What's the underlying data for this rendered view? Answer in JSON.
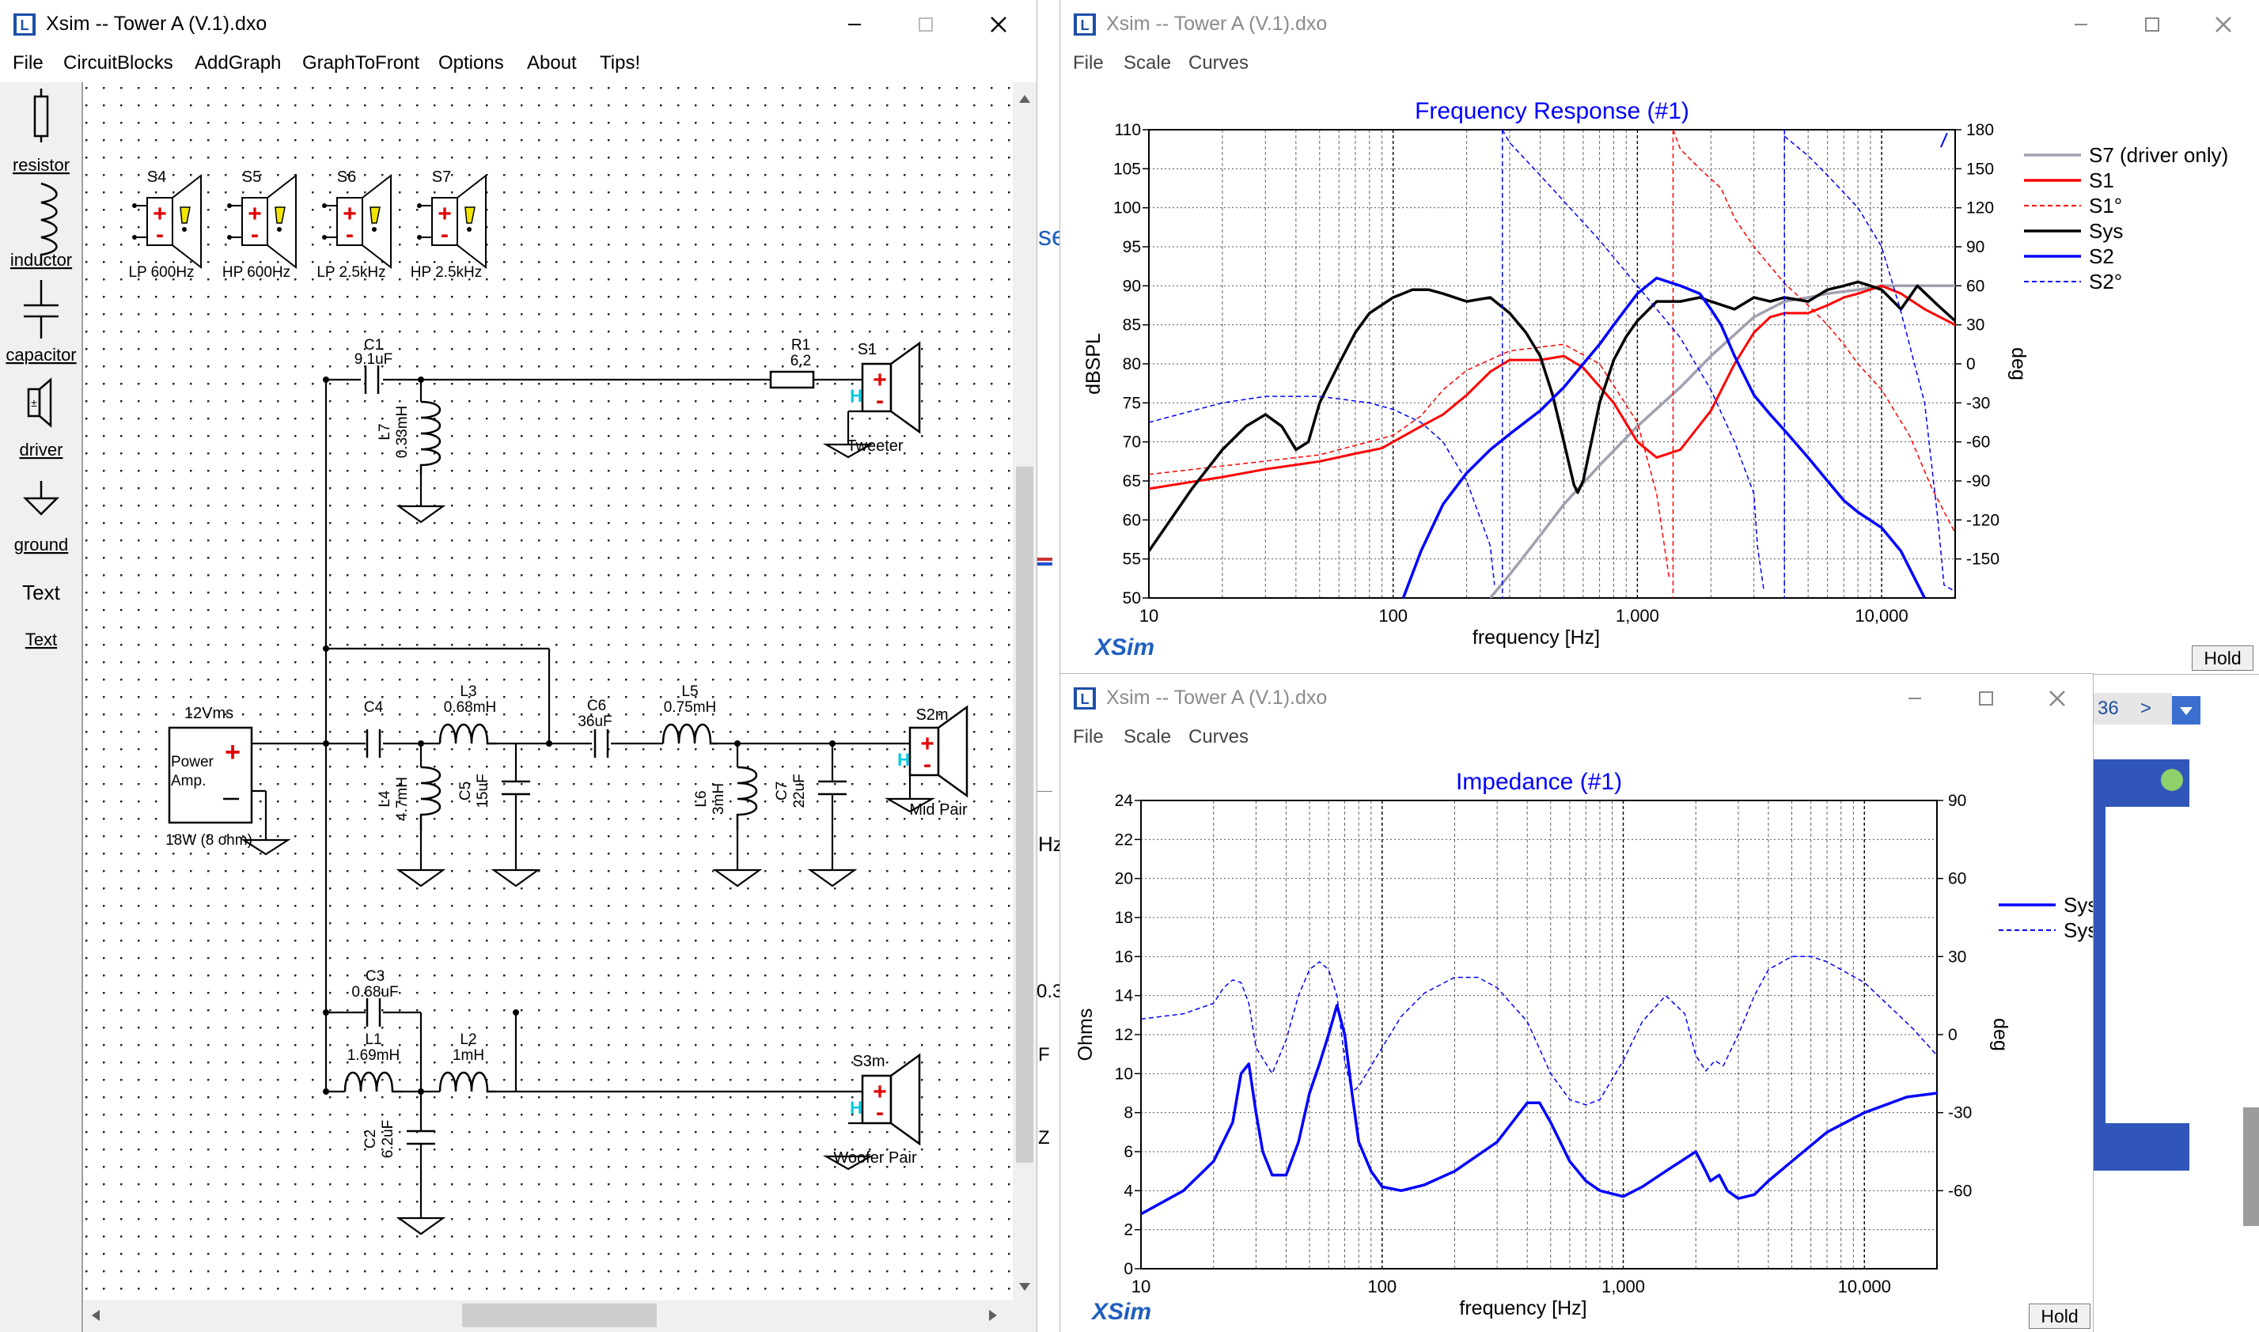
{
  "windows": {
    "schematic": {
      "title": "Xsim -- Tower A (V.1).dxo",
      "menu": [
        "File",
        "CircuitBlocks",
        "AddGraph",
        "GraphToFront",
        "Options",
        "About",
        "Tips!"
      ]
    },
    "freq": {
      "title": "Xsim -- Tower A (V.1).dxo",
      "menu": [
        "File",
        "Scale",
        "Curves"
      ],
      "hold": "Hold"
    },
    "imp": {
      "title": "Xsim -- Tower A (V.1).dxo",
      "menu": [
        "File",
        "Scale",
        "Curves"
      ],
      "hold": "Hold"
    }
  },
  "palette": [
    {
      "id": "resistor",
      "label": "resistor"
    },
    {
      "id": "inductor",
      "label": "inductor"
    },
    {
      "id": "capacitor",
      "label": "capacitor"
    },
    {
      "id": "driver",
      "label": "driver"
    },
    {
      "id": "ground",
      "label": "ground"
    },
    {
      "id": "text",
      "label": "Text",
      "icon_text": "Text"
    }
  ],
  "schematic": {
    "speaker_blocks": [
      {
        "ref": "S4",
        "label": "LP 600Hz"
      },
      {
        "ref": "S5",
        "label": "HP 600Hz"
      },
      {
        "ref": "S6",
        "label": "LP 2.5kHz"
      },
      {
        "ref": "S7",
        "label": "HP 2.5kHz"
      }
    ],
    "components": {
      "c1": [
        "C1",
        "9.1uF"
      ],
      "l7": [
        "L7",
        "0.33mH"
      ],
      "r1": [
        "R1",
        "6.2"
      ],
      "c4": [
        "C4",
        ""
      ],
      "l3": [
        "L3",
        "0.68mH"
      ],
      "l4": [
        "L4",
        "4.7mH"
      ],
      "c5": [
        "C5",
        "15uF"
      ],
      "c6": [
        "C6",
        "36uF"
      ],
      "l5": [
        "L5",
        "0.75mH"
      ],
      "l6": [
        "L6",
        "3mH"
      ],
      "c7": [
        "C7",
        "22uF"
      ],
      "c3": [
        "C3",
        "0.68uF"
      ],
      "l1": [
        "L1",
        "1.69mH"
      ],
      "l2": [
        "L2",
        "1mH"
      ],
      "c2": [
        "C2",
        "6.2uF"
      ]
    },
    "drivers": {
      "s1": {
        "ref": "S1",
        "name": "Tweeter"
      },
      "s2": {
        "ref": "S2m",
        "name": "Mid Pair"
      },
      "s3": {
        "ref": "S3m",
        "name": "Woofer Pair"
      }
    },
    "amp": {
      "voltage": "12Vms",
      "name": "Power Amp.",
      "power": "18W (8 ohm)"
    }
  },
  "background_fragments": [
    "se",
    "Hz",
    "0.3",
    "F",
    "Z",
    "36",
    ">"
  ],
  "chart_data": [
    {
      "type": "line",
      "title": "Frequency Response (#1)",
      "xlabel": "frequency [Hz]",
      "ylabel": "dBSPL",
      "y2label": "deg",
      "xscale": "log",
      "xlim": [
        10,
        20000
      ],
      "ylim": [
        50,
        110
      ],
      "y2lim": [
        -180,
        180
      ],
      "xticks": [
        10,
        100,
        1000,
        10000
      ],
      "xtick_labels": [
        "10",
        "100",
        "1,000",
        "10,000"
      ],
      "yticks": [
        50,
        55,
        60,
        65,
        70,
        75,
        80,
        85,
        90,
        95,
        100,
        105,
        110
      ],
      "y2ticks": [
        -150,
        -120,
        -90,
        -60,
        -30,
        0,
        30,
        60,
        90,
        120,
        150,
        180
      ],
      "grid": true,
      "legend_position": "right",
      "brand": "XSim",
      "series": [
        {
          "name": "S7 (driver only)",
          "color": "#a0a0b0",
          "dash": false,
          "width": 3.5,
          "axis": "left",
          "x": [
            250,
            300,
            400,
            500,
            700,
            1000,
            1500,
            2000,
            3000,
            4000,
            5000,
            6000,
            8000,
            10000,
            15000,
            20000
          ],
          "y": [
            50,
            53,
            58,
            62,
            67,
            72,
            77,
            81,
            86,
            88,
            88.5,
            89,
            89.5,
            90,
            90,
            90
          ]
        },
        {
          "name": "S1",
          "color": "#ff0000",
          "dash": false,
          "width": 3,
          "axis": "left",
          "x": [
            10,
            20,
            30,
            50,
            70,
            90,
            100,
            130,
            160,
            200,
            250,
            300,
            400,
            500,
            600,
            800,
            1000,
            1200,
            1500,
            2000,
            2500,
            3000,
            3500,
            4000,
            5000,
            6000,
            7000,
            8000,
            10000,
            12000,
            15000,
            20000
          ],
          "y": [
            64,
            65.5,
            66.5,
            67.5,
            68.5,
            69.2,
            70,
            72,
            73.5,
            76,
            79,
            80.5,
            80.5,
            81,
            79.5,
            75,
            70,
            68,
            69,
            74,
            80,
            84,
            86,
            86.5,
            86.5,
            87.5,
            88.5,
            89,
            90,
            89,
            87,
            85
          ]
        },
        {
          "name": "S1°",
          "color": "#ff0000",
          "dash": true,
          "width": 1.5,
          "axis": "right",
          "x": [
            10,
            50,
            100,
            130,
            160,
            200,
            300,
            500,
            700,
            1000,
            1200,
            1350,
            1400,
            1500,
            1800,
            2200,
            2500,
            3000,
            4000,
            5000,
            6000,
            7000,
            8000,
            10000,
            13000,
            16000,
            20000
          ],
          "y": [
            -85,
            -70,
            -55,
            -40,
            -20,
            -5,
            10,
            15,
            0,
            -45,
            -100,
            -165,
            180,
            165,
            150,
            135,
            112,
            90,
            62,
            45,
            30,
            15,
            0,
            -20,
            -55,
            -95,
            -130
          ]
        },
        {
          "name": "Sys",
          "color": "#000000",
          "dash": false,
          "width": 3.5,
          "axis": "left",
          "x": [
            10,
            15,
            20,
            25,
            30,
            35,
            40,
            45,
            50,
            60,
            70,
            80,
            100,
            120,
            140,
            160,
            200,
            250,
            300,
            350,
            400,
            450,
            500,
            550,
            570,
            600,
            700,
            800,
            900,
            1000,
            1200,
            1500,
            1800,
            2000,
            2500,
            3000,
            3500,
            4000,
            5000,
            6000,
            7000,
            8000,
            9000,
            10000,
            12000,
            14000,
            17000,
            20000
          ],
          "y": [
            56,
            64,
            69,
            72,
            73.5,
            72,
            69,
            70,
            75,
            80,
            84,
            86.5,
            88.5,
            89.5,
            89.5,
            89,
            88,
            88.5,
            86.5,
            84,
            81,
            76,
            70,
            64.5,
            63.5,
            65,
            75,
            80.5,
            83.5,
            85.5,
            88,
            88,
            88.5,
            88,
            87,
            88.5,
            88,
            88.5,
            88,
            89.5,
            90,
            90.5,
            90,
            89.5,
            87,
            90,
            87.5,
            85.5
          ]
        },
        {
          "name": "S2",
          "color": "#0000ff",
          "dash": false,
          "width": 3.5,
          "axis": "left",
          "x": [
            110,
            130,
            160,
            200,
            250,
            300,
            400,
            500,
            600,
            700,
            800,
            1000,
            1200,
            1500,
            1800,
            2000,
            2200,
            2500,
            3000,
            3500,
            4000,
            5000,
            6000,
            7000,
            8000,
            10000,
            12000,
            15000
          ],
          "y": [
            50,
            56,
            62,
            66,
            69,
            71,
            74,
            77,
            80,
            82.5,
            85,
            89,
            91,
            90,
            89,
            87,
            85,
            81,
            76,
            73.5,
            71.5,
            68,
            65,
            62.5,
            61,
            59,
            56,
            50
          ]
        },
        {
          "name": "S2°",
          "color": "#0000ff",
          "dash": true,
          "width": 1.5,
          "axis": "right",
          "x": [
            10,
            20,
            30,
            50,
            80,
            100,
            130,
            160,
            200,
            250,
            260,
            280,
            300,
            400,
            500,
            700,
            1000,
            1500,
            2000,
            2500,
            3000,
            3100,
            3300,
            4000,
            5000,
            6000,
            8000,
            10000,
            12000,
            15000,
            17000,
            18000,
            20000
          ],
          "y": [
            -45,
            -30,
            -25,
            -25,
            -30,
            -35,
            -45,
            -60,
            -90,
            -140,
            -170,
            180,
            170,
            145,
            125,
            95,
            60,
            20,
            -20,
            -60,
            -100,
            -140,
            -175,
            175,
            160,
            145,
            120,
            90,
            40,
            -30,
            -120,
            -170,
            -175
          ]
        }
      ],
      "right_markers": [
        {
          "x": 18000,
          "y": 175
        }
      ]
    },
    {
      "type": "line",
      "title": "Impedance (#1)",
      "xlabel": "frequency [Hz]",
      "ylabel": "Ohms",
      "y2label": "deg",
      "xscale": "log",
      "xlim": [
        10,
        20000
      ],
      "ylim": [
        0,
        24
      ],
      "y2lim": [
        -90,
        90
      ],
      "xticks": [
        10,
        100,
        1000,
        10000
      ],
      "xtick_labels": [
        "10",
        "100",
        "1,000",
        "10,000"
      ],
      "yticks": [
        0,
        2,
        4,
        6,
        8,
        10,
        12,
        14,
        16,
        18,
        20,
        22,
        24
      ],
      "y2ticks": [
        -60,
        -30,
        0,
        30,
        60,
        90
      ],
      "grid": true,
      "legend_position": "top-right",
      "brand": "XSim",
      "series": [
        {
          "name": "Sys",
          "color": "#0000ff",
          "dash": false,
          "width": 3.5,
          "axis": "left",
          "x": [
            10,
            15,
            20,
            24,
            26,
            28,
            30,
            32,
            35,
            40,
            45,
            50,
            55,
            60,
            65,
            70,
            75,
            80,
            90,
            100,
            120,
            150,
            200,
            300,
            400,
            450,
            500,
            600,
            700,
            800,
            1000,
            1200,
            1500,
            2000,
            2200,
            2300,
            2500,
            2700,
            3000,
            3500,
            4000,
            5000,
            7000,
            10000,
            15000,
            20000
          ],
          "y": [
            2.8,
            4,
            5.5,
            7.5,
            10,
            10.5,
            8,
            6,
            4.8,
            4.8,
            6.5,
            9,
            10.5,
            12,
            13.5,
            12,
            9,
            6.5,
            5,
            4.2,
            4,
            4.3,
            5,
            6.5,
            8.5,
            8.5,
            7.5,
            5.5,
            4.5,
            4,
            3.7,
            4.2,
            5,
            6,
            5,
            4.5,
            4.8,
            4,
            3.6,
            3.8,
            4.5,
            5.5,
            7,
            8,
            8.8,
            9
          ]
        },
        {
          "name": "Sys°",
          "color": "#0000ff",
          "dash": true,
          "width": 1.5,
          "axis": "right",
          "x": [
            10,
            15,
            20,
            22,
            24,
            26,
            28,
            30,
            35,
            40,
            45,
            50,
            55,
            60,
            65,
            70,
            75,
            80,
            90,
            100,
            120,
            150,
            200,
            250,
            300,
            400,
            500,
            600,
            700,
            800,
            1000,
            1200,
            1500,
            1800,
            2000,
            2200,
            2400,
            2600,
            3000,
            3500,
            4000,
            5000,
            6000,
            7000,
            8000,
            10000,
            13000,
            16000,
            20000
          ],
          "y": [
            6,
            8,
            12,
            18,
            21,
            20,
            12,
            -5,
            -15,
            -2,
            15,
            25,
            28,
            25,
            15,
            -10,
            -22,
            -20,
            -12,
            -5,
            7,
            16,
            22,
            22,
            18,
            5,
            -15,
            -25,
            -27,
            -25,
            -10,
            5,
            15,
            8,
            -8,
            -14,
            -10,
            -12,
            0,
            15,
            25,
            30,
            30,
            28,
            25,
            20,
            10,
            2,
            -8
          ]
        }
      ]
    }
  ]
}
